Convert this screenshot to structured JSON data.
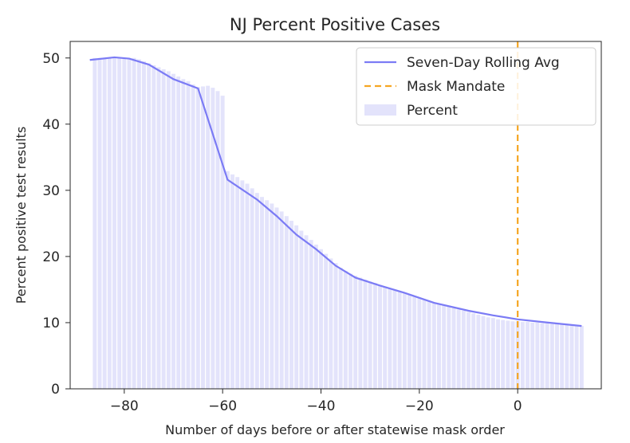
{
  "chart_data": {
    "type": "bar",
    "title": "NJ Percent Positive Cases",
    "xlabel": "Number of days before or after statewise mask order",
    "ylabel": "Percent positive test results",
    "xlim": [
      -91,
      17
    ],
    "ylim": [
      0,
      52.5
    ],
    "xticks": [
      -80,
      -60,
      -40,
      -20,
      0
    ],
    "xtick_labels": [
      "−80",
      "−60",
      "−40",
      "−20",
      "0"
    ],
    "yticks": [
      0,
      10,
      20,
      30,
      40,
      50
    ],
    "ytick_labels": [
      "0",
      "10",
      "20",
      "30",
      "40",
      "50"
    ],
    "grid": false,
    "legend_position": "top-right",
    "legend": [
      {
        "label": "Seven-Day Rolling Avg",
        "style": "line"
      },
      {
        "label": "Mask Mandate",
        "style": "dashed"
      },
      {
        "label": "Percent",
        "style": "patch"
      }
    ],
    "colors": {
      "line": "#7b7bf5",
      "bars": "#e3e3fb",
      "mandate": "#f5a623",
      "axes": "#262626"
    },
    "mask_mandate_x": 0,
    "x": [
      -86,
      -85,
      -84,
      -83,
      -82,
      -81,
      -80,
      -79,
      -78,
      -77,
      -76,
      -75,
      -74,
      -73,
      -72,
      -71,
      -70,
      -69,
      -68,
      -67,
      -66,
      -65,
      -64,
      -63,
      -62,
      -61,
      -60,
      -59,
      -58,
      -57,
      -56,
      -55,
      -54,
      -53,
      -52,
      -51,
      -50,
      -49,
      -48,
      -47,
      -46,
      -45,
      -44,
      -43,
      -42,
      -41,
      -40,
      -39,
      -38,
      -37,
      -36,
      -35,
      -34,
      -33,
      -32,
      -31,
      -30,
      -29,
      -28,
      -27,
      -26,
      -25,
      -24,
      -23,
      -22,
      -21,
      -20,
      -19,
      -18,
      -17,
      -16,
      -15,
      -14,
      -13,
      -12,
      -11,
      -10,
      -9,
      -8,
      -7,
      -6,
      -5,
      -4,
      -3,
      -2,
      -1,
      0,
      1,
      2,
      3,
      4,
      5,
      6,
      7,
      8,
      9,
      10,
      11,
      12,
      13
    ],
    "percent": [
      50.0,
      50.0,
      50.0,
      50.0,
      50.0,
      50.0,
      50.0,
      50.0,
      50.0,
      49.8,
      49.5,
      49.2,
      48.9,
      48.6,
      48.3,
      48.0,
      47.6,
      47.2,
      46.8,
      46.5,
      46.0,
      45.6,
      45.7,
      45.8,
      45.5,
      45.0,
      44.3,
      32.9,
      32.4,
      32.0,
      31.5,
      31.0,
      30.3,
      29.6,
      29.0,
      28.5,
      28.0,
      27.4,
      26.8,
      26.1,
      25.4,
      24.7,
      23.9,
      23.2,
      22.5,
      21.8,
      21.1,
      20.4,
      19.7,
      19.0,
      18.3,
      17.8,
      17.4,
      17.1,
      16.8,
      16.5,
      16.2,
      16.0,
      15.7,
      15.4,
      15.1,
      14.9,
      14.7,
      14.4,
      14.2,
      14.0,
      13.7,
      13.5,
      13.2,
      13.0,
      12.8,
      12.6,
      12.4,
      12.2,
      12.0,
      11.8,
      11.6,
      11.4,
      11.2,
      11.0,
      10.8,
      10.7,
      10.5,
      10.4,
      10.3,
      10.2,
      10.2,
      10.1,
      10.1,
      10.0,
      10.0,
      9.9,
      9.9,
      9.8,
      9.8,
      9.7,
      9.7,
      9.6,
      9.6,
      9.5
    ],
    "rolling_avg": [
      {
        "x": -87,
        "y": 49.7
      },
      {
        "x": -82,
        "y": 50.1
      },
      {
        "x": -79,
        "y": 49.9
      },
      {
        "x": -75,
        "y": 49.0
      },
      {
        "x": -70,
        "y": 46.8
      },
      {
        "x": -65,
        "y": 45.4
      },
      {
        "x": -59,
        "y": 31.6
      },
      {
        "x": -53,
        "y": 28.6
      },
      {
        "x": -49,
        "y": 26.1
      },
      {
        "x": -45,
        "y": 23.3
      },
      {
        "x": -41,
        "y": 21.1
      },
      {
        "x": -37,
        "y": 18.6
      },
      {
        "x": -33,
        "y": 16.8
      },
      {
        "x": -28,
        "y": 15.6
      },
      {
        "x": -23,
        "y": 14.5
      },
      {
        "x": -17,
        "y": 13.0
      },
      {
        "x": -10,
        "y": 11.8
      },
      {
        "x": -5,
        "y": 11.1
      },
      {
        "x": 0,
        "y": 10.5
      },
      {
        "x": 5,
        "y": 10.1
      },
      {
        "x": 13,
        "y": 9.5
      }
    ]
  }
}
